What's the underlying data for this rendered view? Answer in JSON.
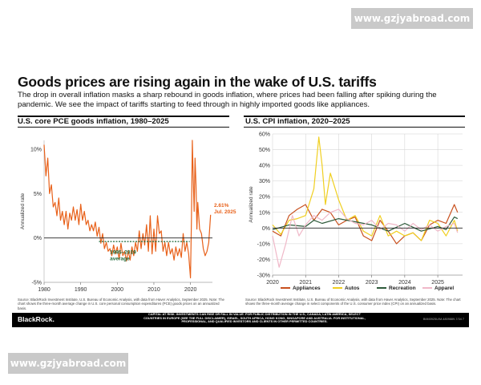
{
  "watermark": {
    "text": "www.gzjyabroad.com"
  },
  "slide": {
    "title": "Goods prices are rising again in the wake of U.S. tariffs",
    "subtitle": "The drop in overall inflation masks a sharp rebound in goods inflation, where prices had been falling after spiking during the pandemic. We see the impact of tariffs starting to feed through in highly imported goods like appliances."
  },
  "left_source": "Source: BlackRock Investment Institute, U.S. Bureau of Economic Analysis, with data from Haver Analytics, September 2025. Note: The chart shows the three-month average change in U.S. core personal consumption expenditures (PCE) goods prices on an annualized basis.",
  "right_source": "Source: BlackRock Investment Institute, U.S. Bureau of Economic Analysis, with data from Haver Analytics, September 2025. Note: The chart shows the three-month average change in select components of the U.S. consumer price index (CPI) on an annualized basis.",
  "footer": {
    "brand": "BlackRock.",
    "disclaimer": "CAPITAL AT RISK. INVESTMENTS CAN RISE OR FALL IN VALUE. FOR PUBLIC DISTRIBUTION IN THE U.S., CANADA, LATIN AMERICA, SELECT COUNTRIES IN EUROPE (SEE THE FULL DISCLAIMER), ISRAEL, SOUTH AFRICA, HONG KONG, SINGAPORE AND AUSTRALIA. FOR INSTITUTIONAL, PROFESSIONAL, AND QUALIFIED INVESTORS AND CLIENTS IN OTHER PERMITTED COUNTRIES.",
    "code": "BIIM0925U/M-4809889-7/34",
    "page": "7"
  },
  "colors": {
    "pce": "#e8611a",
    "average": "#1e6a3a",
    "appliances": "#c8501e",
    "autos": "#f0cf20",
    "recreation": "#2e5a3a",
    "apparel": "#f0b8c8",
    "zero": "#222222",
    "grid": "#cfcfcf",
    "annotation": "#e8611a"
  },
  "chart_data": [
    {
      "type": "line",
      "title": "U.S. core PCE goods inflation, 1980–2025",
      "ylabel": "Annualized rate",
      "xlim": [
        1980,
        2026
      ],
      "ylim": [
        -5,
        11
      ],
      "xticks": [
        1980,
        1990,
        2000,
        2010,
        2020
      ],
      "yticks": [
        {
          "v": 10,
          "label": "10%"
        },
        {
          "v": 5,
          "label": "5%"
        },
        {
          "v": 0,
          "label": "0%"
        },
        {
          "v": -5,
          "label": "-5%"
        }
      ],
      "series": [
        {
          "key": "pce",
          "x": [
            1980,
            1980.5,
            1981,
            1981.5,
            1982,
            1982.5,
            1983,
            1983.5,
            1984,
            1984.5,
            1985,
            1985.5,
            1986,
            1986.5,
            1987,
            1987.5,
            1988,
            1988.5,
            1989,
            1989.5,
            1990,
            1990.5,
            1991,
            1991.5,
            1992,
            1992.5,
            1993,
            1993.5,
            1994,
            1994.5,
            1995,
            1995.5,
            1996,
            1996.5,
            1997,
            1997.5,
            1998,
            1998.5,
            1999,
            1999.5,
            2000,
            2000.5,
            2001,
            2001.5,
            2002,
            2002.5,
            2003,
            2003.5,
            2004,
            2004.5,
            2005,
            2005.5,
            2006,
            2006.5,
            2007,
            2007.5,
            2008,
            2008.5,
            2009,
            2009.5,
            2010,
            2010.5,
            2011,
            2011.5,
            2012,
            2012.5,
            2013,
            2013.5,
            2014,
            2014.5,
            2015,
            2015.5,
            2016,
            2016.5,
            2017,
            2017.5,
            2018,
            2018.5,
            2019,
            2019.5,
            2020,
            2020.25,
            2020.5,
            2020.75,
            2021,
            2021.25,
            2021.5,
            2021.75,
            2022,
            2022.5,
            2023,
            2023.5,
            2024,
            2024.5,
            2025,
            2025.5
          ],
          "y": [
            10.5,
            7,
            9,
            5,
            6,
            3.5,
            4,
            2.5,
            4.5,
            2,
            3,
            1.5,
            3,
            1,
            2.8,
            2,
            3.5,
            2,
            3.2,
            1.5,
            3.8,
            2,
            3,
            1.5,
            2,
            0.8,
            1.5,
            0.8,
            1.8,
            0.2,
            1.2,
            -0.6,
            0.5,
            -1.2,
            -0.5,
            -1.5,
            -1.2,
            -2,
            -0.8,
            -1.8,
            -1,
            -2.4,
            -0.6,
            -2,
            -1.5,
            -2.6,
            -1.4,
            -2.5,
            -1,
            -2,
            -0.5,
            -1.5,
            0.8,
            -1.2,
            0.5,
            -0.8,
            1.5,
            -1.5,
            2.5,
            -1.8,
            1,
            -1.5,
            2.5,
            0.5,
            0.8,
            -1.5,
            -0.5,
            -2,
            -0.5,
            -1.8,
            -1.2,
            -2.5,
            -1,
            -2,
            -1.2,
            -2.2,
            0.5,
            -1.5,
            -0.5,
            -1.8,
            -4.5,
            2,
            11,
            7,
            3,
            9,
            6,
            1,
            4,
            1,
            0.5,
            -1.2,
            -2,
            -1.5,
            -0.5,
            2.61
          ]
        },
        {
          "key": "average",
          "x": [
            1995,
            2019.8
          ],
          "y": [
            -0.4,
            -0.4
          ]
        }
      ],
      "annotations": [
        {
          "key": "latest",
          "lines": [
            "2.61%",
            "Jul. 2025"
          ],
          "x": 2026,
          "y": 3.5
        },
        {
          "key": "avg",
          "lines": [
            "1995–2019",
            "average"
          ],
          "x": 1998,
          "y": -1.8
        }
      ]
    },
    {
      "type": "line",
      "title": "U.S. CPI inflation, 2020–2025",
      "ylabel": "Annualized rate",
      "xlim": [
        2020,
        2025.75
      ],
      "ylim": [
        -30,
        60
      ],
      "xticks": [
        2020,
        2021,
        2022,
        2023,
        2024,
        2025
      ],
      "yticks": [
        {
          "v": 60,
          "label": "60%"
        },
        {
          "v": 50,
          "label": "50%"
        },
        {
          "v": 40,
          "label": "40%"
        },
        {
          "v": 30,
          "label": "30%"
        },
        {
          "v": 20,
          "label": "20%"
        },
        {
          "v": 10,
          "label": "10%"
        },
        {
          "v": 0,
          "label": "0%"
        },
        {
          "v": -10,
          "label": "-10%"
        },
        {
          "v": -20,
          "label": "-20%"
        },
        {
          "v": -30,
          "label": "-30%"
        }
      ],
      "series": [
        {
          "key": "appliances",
          "name": "Appliances",
          "x": [
            2020,
            2020.25,
            2020.5,
            2020.75,
            2021,
            2021.25,
            2021.5,
            2021.75,
            2022,
            2022.25,
            2022.5,
            2022.75,
            2023,
            2023.25,
            2023.5,
            2023.75,
            2024,
            2024.25,
            2024.5,
            2024.75,
            2025,
            2025.25,
            2025.5,
            2025.6
          ],
          "y": [
            -2,
            -5,
            8,
            12,
            15,
            5,
            12,
            10,
            2,
            5,
            7,
            -5,
            -8,
            5,
            -2,
            -10,
            -5,
            -3,
            -8,
            2,
            5,
            3,
            15,
            10
          ]
        },
        {
          "key": "autos",
          "name": "Autos",
          "x": [
            2020,
            2020.25,
            2020.5,
            2020.75,
            2021,
            2021.25,
            2021.4,
            2021.5,
            2021.6,
            2021.75,
            2022,
            2022.25,
            2022.5,
            2022.75,
            2023,
            2023.25,
            2023.5,
            2023.75,
            2024,
            2024.25,
            2024.5,
            2024.75,
            2025,
            2025.25,
            2025.5,
            2025.6
          ],
          "y": [
            2,
            -4,
            5,
            6,
            8,
            25,
            58,
            40,
            15,
            35,
            18,
            5,
            8,
            -2,
            -5,
            8,
            -5,
            -2,
            -5,
            -3,
            -8,
            5,
            3,
            -5,
            5,
            -2
          ]
        },
        {
          "key": "recreation",
          "name": "Recreation",
          "x": [
            2020,
            2020.5,
            2021,
            2021.25,
            2021.5,
            2022,
            2022.5,
            2023,
            2023.5,
            2024,
            2024.5,
            2025,
            2025.25,
            2025.5,
            2025.6
          ],
          "y": [
            -1,
            2,
            1,
            5,
            3,
            6,
            4,
            2,
            -2,
            3,
            -2,
            1,
            -1,
            7,
            6
          ]
        },
        {
          "key": "apparel",
          "name": "Apparel",
          "x": [
            2020,
            2020.2,
            2020.4,
            2020.6,
            2020.8,
            2021,
            2021.25,
            2021.5,
            2021.75,
            2022,
            2022.25,
            2022.5,
            2022.75,
            2023,
            2023.25,
            2023.5,
            2023.75,
            2024,
            2024.25,
            2024.5,
            2024.75,
            2025,
            2025.25,
            2025.5,
            2025.6
          ],
          "y": [
            -5,
            -25,
            -10,
            8,
            -5,
            2,
            8,
            5,
            10,
            12,
            6,
            3,
            2,
            5,
            -1,
            3,
            2,
            -2,
            3,
            -1,
            2,
            -2,
            1,
            3,
            -3
          ]
        }
      ],
      "legend": [
        {
          "key": "appliances",
          "label": "Appliances"
        },
        {
          "key": "autos",
          "label": "Autos"
        },
        {
          "key": "recreation",
          "label": "Recreation"
        },
        {
          "key": "apparel",
          "label": "Apparel"
        }
      ]
    }
  ]
}
